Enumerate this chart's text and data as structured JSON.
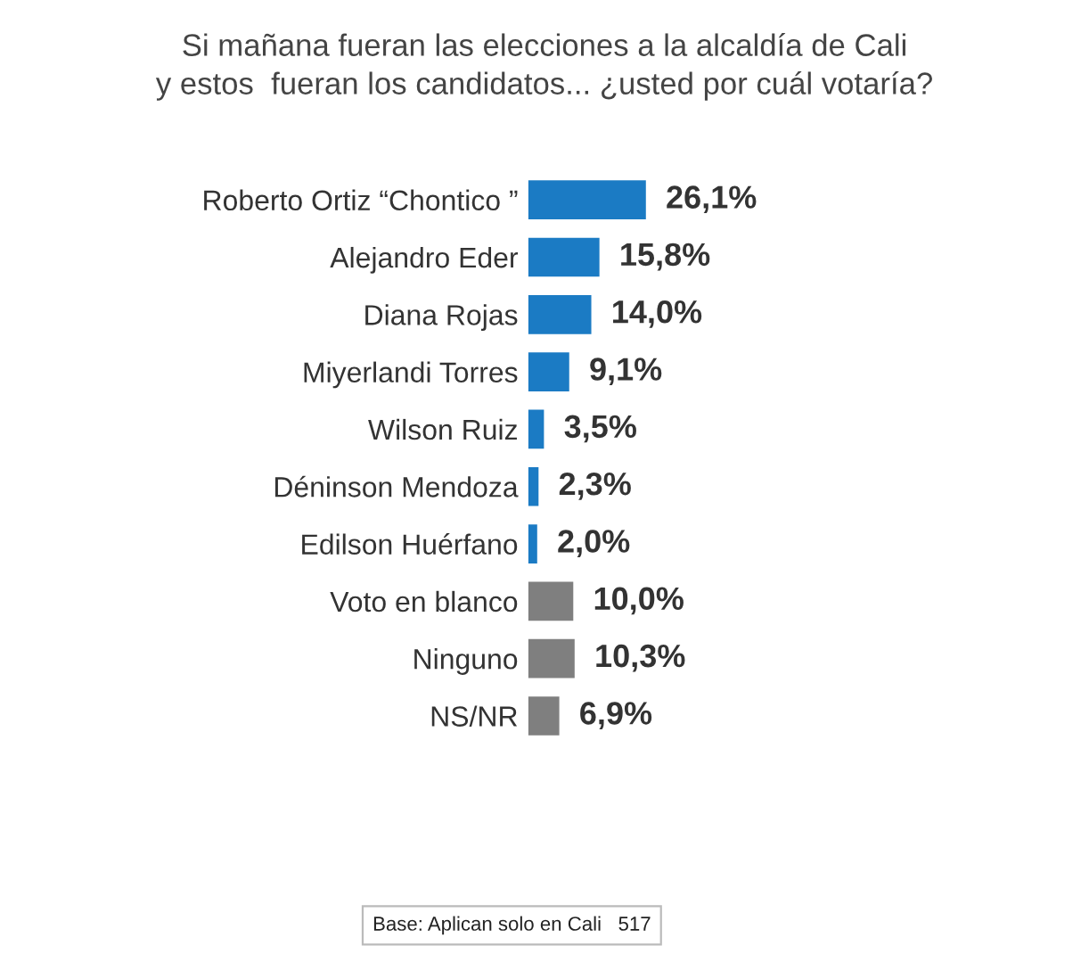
{
  "chart_data": {
    "type": "bar",
    "orientation": "horizontal",
    "title": "Si mañana fueran las elecciones a la alcaldía de Cali\ny estos  fueran los candidatos... ¿usted por cuál votaría?",
    "categories": [
      "Roberto Ortiz “Chontico ”",
      "Alejandro Eder",
      "Diana Rojas",
      "Miyerlandi Torres",
      "Wilson Ruiz",
      "Déninson Mendoza",
      "Edilson Huérfano",
      "Voto en blanco",
      "Ninguno",
      "NS/NR"
    ],
    "values": [
      26.1,
      15.8,
      14.0,
      9.1,
      3.5,
      2.3,
      2.0,
      10.0,
      10.3,
      6.9
    ],
    "colors": [
      "#1b7bc4",
      "#1b7bc4",
      "#1b7bc4",
      "#1b7bc4",
      "#1b7bc4",
      "#1b7bc4",
      "#1b7bc4",
      "#7f7f7f",
      "#7f7f7f",
      "#7f7f7f"
    ],
    "value_labels": [
      "26,1%",
      "15,8%",
      "14,0%",
      "9,1%",
      "3,5%",
      "2,3%",
      "2,0%",
      "10,0%",
      "10,3%",
      "6,9%"
    ],
    "tick_labels": "y",
    "grid": false,
    "legend": false,
    "annotations": [
      "Base: Aplican solo en Cali   517"
    ]
  }
}
